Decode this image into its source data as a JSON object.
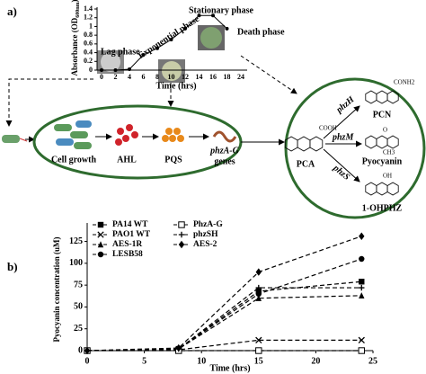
{
  "diagram": {
    "panel_a_label": "a)",
    "panel_b_label": "b)",
    "steps": [
      "Cell growth",
      "AHL",
      "PQS"
    ],
    "genes_italic": "phzA-G",
    "genes_suffix": "genes",
    "precursor": "PCA",
    "precursor_group": "COOH",
    "enzymes": [
      "phzH",
      "phzM",
      "phzS"
    ],
    "products": [
      "PCN",
      "Pyocyanin",
      "1-OHPHZ"
    ],
    "product_groups": [
      "CONH2",
      "O",
      "OH"
    ],
    "methyl": "CH3"
  },
  "chart_data": [
    {
      "type": "line",
      "x_label": "Time (hrs)",
      "y_label_main": "Absorbance (OD",
      "y_label_sub": "600nm",
      "y_label_end": ")",
      "categories": [
        "0",
        "2",
        "4",
        "6",
        "8",
        "10",
        "12",
        "14",
        "16",
        "18",
        "24"
      ],
      "values": [
        0,
        0,
        0.02,
        0.35,
        0.5,
        0.7,
        0.95,
        1.25,
        1.25,
        0.95,
        null
      ],
      "ylim": [
        0,
        1.4
      ],
      "yticks": [
        0,
        0.2,
        0.4,
        0.6,
        0.8,
        1,
        1.2,
        1.4
      ],
      "phases": [
        "Lag phase",
        "Exponential phase",
        "Stationary phase",
        "Death phase"
      ],
      "color": "#000000"
    },
    {
      "type": "line",
      "x_label": "Time (hrs)",
      "y_label": "Pyocyanin concentration (uM)",
      "x": [
        0,
        8,
        15,
        24
      ],
      "xlim": [
        0,
        25
      ],
      "xticks": [
        0,
        5,
        10,
        15,
        20,
        25
      ],
      "ylim": [
        0,
        140
      ],
      "yticks": [
        0,
        25,
        50,
        75,
        100,
        125
      ],
      "legend": "top-left",
      "series": [
        {
          "name": "PA14 WT",
          "color": "#000000",
          "marker": "square",
          "values": [
            0,
            2,
            68,
            79
          ]
        },
        {
          "name": "PAO1 WT",
          "color": "#000000",
          "marker": "x",
          "values": [
            0,
            1,
            12,
            12
          ]
        },
        {
          "name": "AES-1R",
          "color": "#000000",
          "marker": "triangle",
          "values": [
            0,
            2,
            60,
            63
          ]
        },
        {
          "name": "LESB58",
          "color": "#000000",
          "marker": "circle",
          "values": [
            0,
            2,
            65,
            105
          ]
        },
        {
          "name": "PhzA-G",
          "color": "#000000",
          "marker": "open-square",
          "values": [
            0,
            0,
            0,
            0
          ]
        },
        {
          "name": "phzSH",
          "color": "#000000",
          "marker": "plus",
          "values": [
            0,
            2,
            72,
            72
          ]
        },
        {
          "name": "AES-2",
          "color": "#000000",
          "marker": "diamond",
          "values": [
            0,
            3,
            90,
            131
          ]
        }
      ]
    }
  ]
}
